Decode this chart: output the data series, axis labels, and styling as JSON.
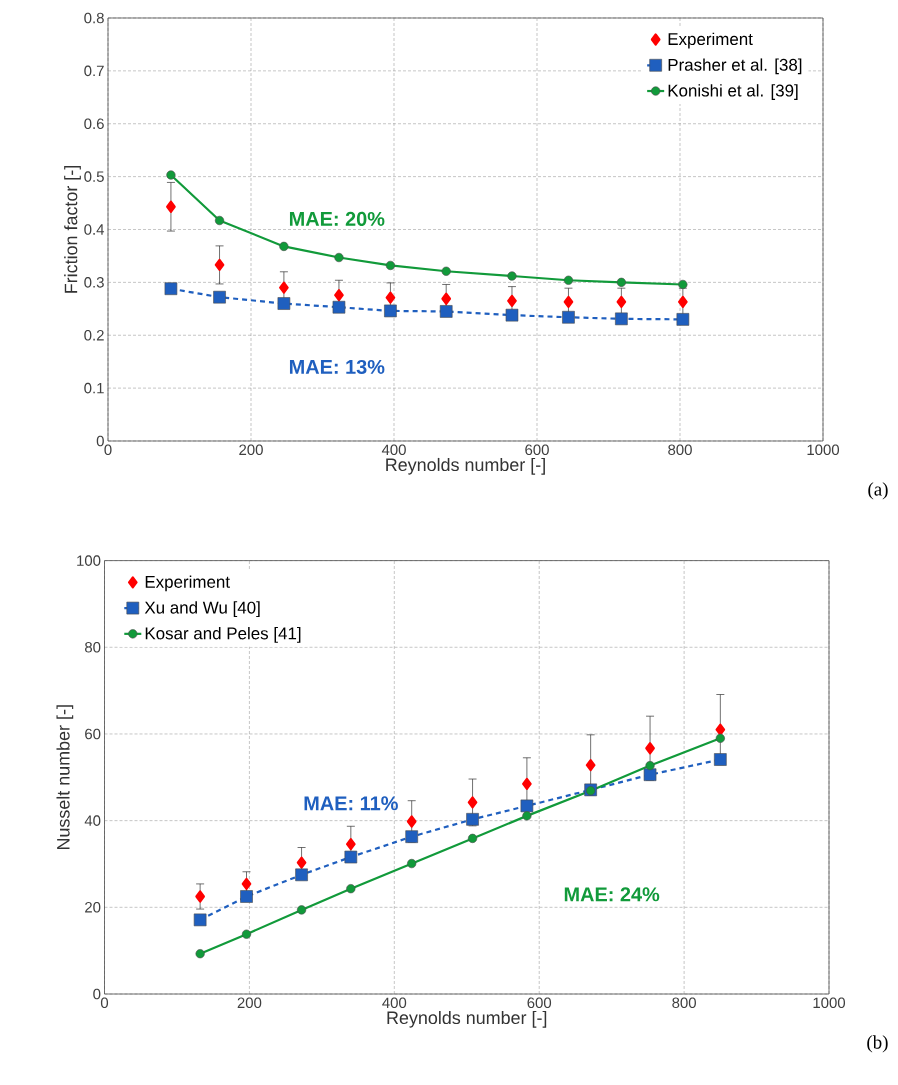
{
  "chart_data": [
    {
      "type": "line",
      "xlabel": "Reynolds number [-]",
      "ylabel": "Friction factor [-]",
      "xlim": [
        0,
        1000
      ],
      "ylim": [
        0,
        0.8
      ],
      "xticks": [
        0,
        200,
        400,
        600,
        800,
        1000
      ],
      "yticks": [
        0,
        0.1,
        0.2,
        0.3,
        0.4,
        0.5,
        0.6,
        0.7,
        0.8
      ],
      "grid": true,
      "legend": "top right",
      "series": [
        {
          "name": "Experiment",
          "type": "scatter",
          "marker": "diamond",
          "line_style": "none",
          "color": "#ff0000",
          "x": [
            88,
            156,
            246,
            323,
            395,
            473,
            565,
            644,
            718,
            804
          ],
          "values": [
            0.443,
            0.333,
            0.29,
            0.276,
            0.271,
            0.269,
            0.265,
            0.263,
            0.263,
            0.263
          ],
          "errors": [
            0.046,
            0.036,
            0.03,
            0.028,
            0.028,
            0.027,
            0.027,
            0.026,
            0.026,
            0.026
          ]
        },
        {
          "name": "Prasher et al. [38]",
          "marker": "square",
          "line_style": "dashed",
          "color": "#1f5fbf",
          "x": [
            88,
            156,
            246,
            323,
            395,
            473,
            565,
            644,
            718,
            804
          ],
          "values": [
            0.288,
            0.272,
            0.26,
            0.253,
            0.246,
            0.245,
            0.238,
            0.234,
            0.231,
            0.23
          ]
        },
        {
          "name": "Konishi et al. [39]",
          "marker": "circle",
          "line_style": "solid",
          "color": "#119a3a",
          "x": [
            88,
            156,
            246,
            323,
            395,
            473,
            565,
            644,
            718,
            804
          ],
          "values": [
            0.503,
            0.417,
            0.368,
            0.347,
            0.332,
            0.321,
            0.312,
            0.304,
            0.3,
            0.296
          ]
        }
      ],
      "annotations": [
        "MAE: 20%",
        "MAE: 13%",
        "(a)"
      ]
    },
    {
      "type": "line",
      "xlabel": "Reynolds number [-]",
      "ylabel": "Nusselt number [-]",
      "xlim": [
        0,
        1000
      ],
      "ylim": [
        0,
        100
      ],
      "xticks": [
        0,
        200,
        400,
        600,
        800,
        1000
      ],
      "yticks": [
        0,
        20,
        40,
        60,
        80,
        100
      ],
      "grid": true,
      "legend": "top left",
      "series": [
        {
          "name": "Experiment",
          "type": "scatter",
          "marker": "diamond",
          "line_style": "none",
          "color": "#ff0000",
          "x": [
            132,
            196,
            272,
            340,
            424,
            508,
            583,
            671,
            753,
            850
          ],
          "values": [
            22.5,
            25.4,
            30.3,
            34.6,
            39.8,
            44.2,
            48.5,
            52.8,
            56.7,
            61.0
          ],
          "errors": [
            2.9,
            2.8,
            3.5,
            4.1,
            4.8,
            5.4,
            6,
            7,
            7.4,
            8.1
          ]
        },
        {
          "name": "Xu and Wu [40]",
          "marker": "square",
          "line_style": "dashed",
          "color": "#1f5fbf",
          "x": [
            132,
            196,
            272,
            340,
            424,
            508,
            583,
            671,
            753,
            850
          ],
          "values": [
            17.1,
            22.5,
            27.5,
            31.6,
            36.3,
            40.3,
            43.4,
            47.1,
            50.6,
            54.1
          ]
        },
        {
          "name": "Kosar and Peles [41]",
          "marker": "circle",
          "line_style": "solid",
          "color": "#119a3a",
          "x": [
            132,
            196,
            272,
            340,
            424,
            508,
            583,
            671,
            753,
            850
          ],
          "values": [
            9.3,
            13.8,
            19.4,
            24.3,
            30.1,
            35.9,
            41.1,
            46.9,
            52.7,
            59.0
          ]
        }
      ],
      "annotations": [
        "MAE: 11%",
        "MAE: 24%",
        "(b)"
      ]
    }
  ]
}
